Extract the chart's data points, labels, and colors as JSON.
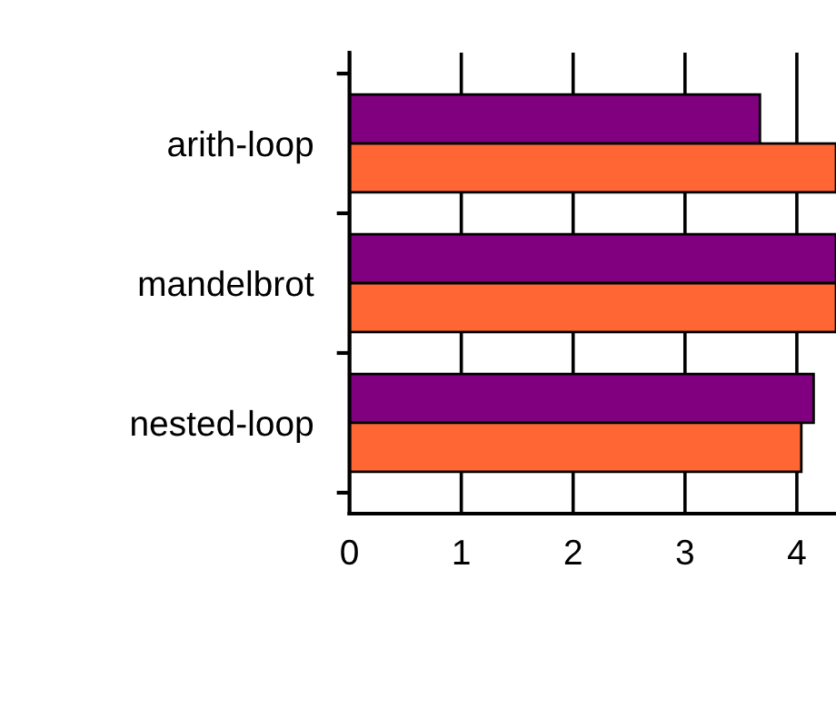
{
  "chart_data": {
    "type": "bar",
    "orientation": "horizontal",
    "categories": [
      "arith-loop",
      "mandelbrot",
      "nested-loop"
    ],
    "series": [
      {
        "color": "#800080",
        "values": [
          3.67,
          4.35,
          4.15
        ]
      },
      {
        "color": "#ff6633",
        "values": [
          4.35,
          4.35,
          4.04
        ]
      }
    ],
    "xlim": [
      0,
      4.35
    ],
    "xticks": [
      0,
      1,
      2,
      3,
      4
    ],
    "grid": "x",
    "legend": false
  }
}
